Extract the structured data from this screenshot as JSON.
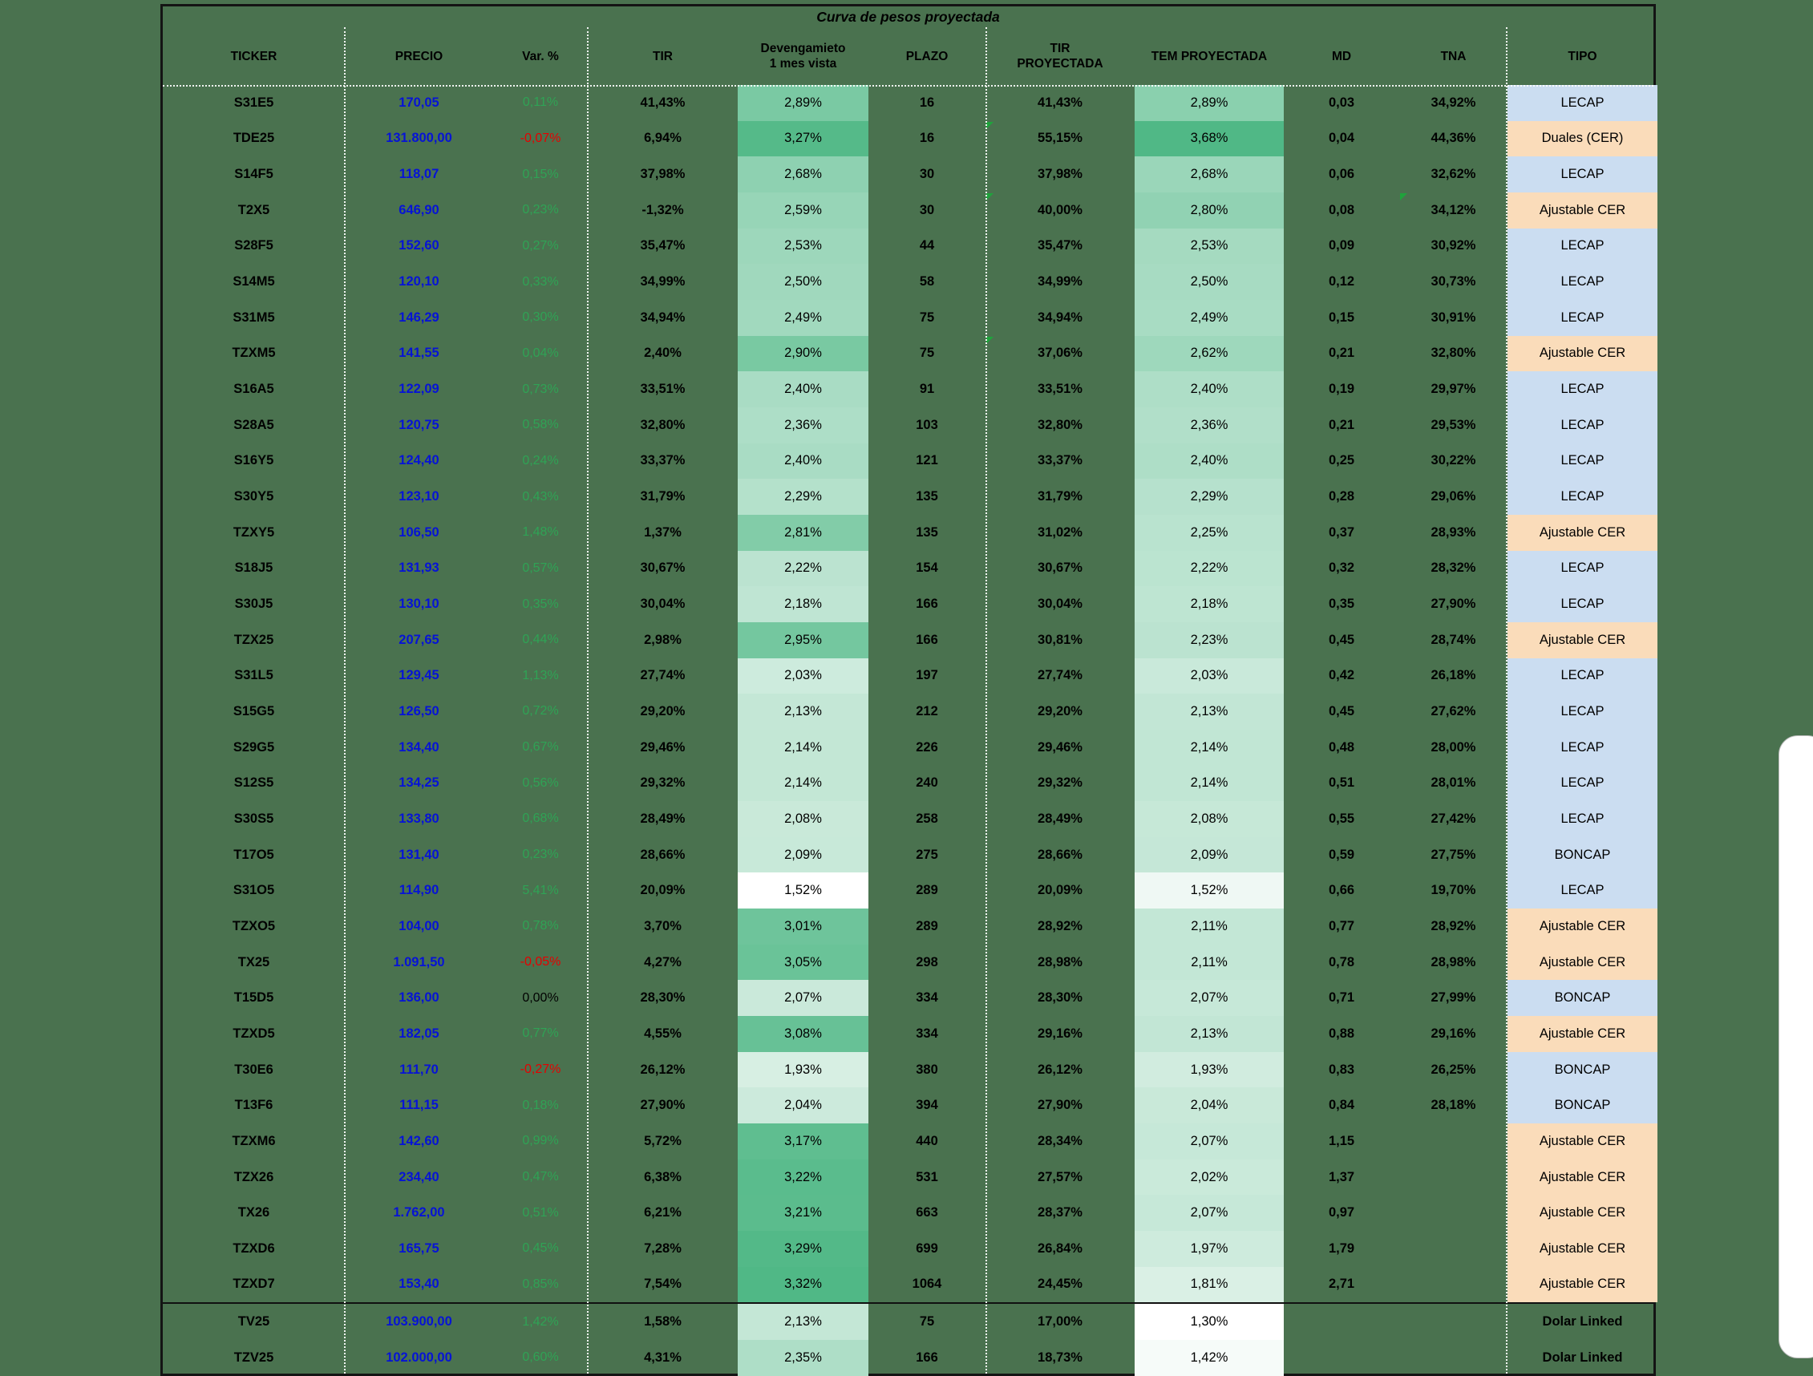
{
  "title": "Curva de pesos proyectada",
  "columns": [
    {
      "key": "ticker",
      "label": "TICKER"
    },
    {
      "key": "precio",
      "label": "PRECIO"
    },
    {
      "key": "var",
      "label": "Var. %"
    },
    {
      "key": "tir",
      "label": "TIR"
    },
    {
      "key": "dev",
      "label": "Devengamieto 1 mes vista",
      "label_lines": [
        "Devengamieto",
        "1 mes vista"
      ]
    },
    {
      "key": "plazo",
      "label": "PLAZO"
    },
    {
      "key": "tirp",
      "label": "TIR PROYECTADA",
      "label_lines": [
        "TIR",
        "PROYECTADA"
      ]
    },
    {
      "key": "tem",
      "label": "TEM PROYECTADA"
    },
    {
      "key": "md",
      "label": "MD"
    },
    {
      "key": "tna",
      "label": "TNA"
    },
    {
      "key": "tipo",
      "label": "TIPO"
    }
  ],
  "colors": {
    "background": "#4a724f",
    "price_text": "#0613d6",
    "positive_var": "#2fa355",
    "negative_var": "#e60000",
    "zero_var": "#000000",
    "heat_max": "#50b886",
    "error_indicator": "#1fa33c",
    "tipo_fills": {
      "LECAP": "#cbddf1",
      "BONCAP": "#cbddf1",
      "Duales (CER)": "#fadcba",
      "Ajustable CER": "#fadcba",
      "Dolar Linked": ""
    }
  },
  "rows": [
    {
      "ticker": "S31E5",
      "precio": "170,05",
      "var": "0,11%",
      "tir": "41,43%",
      "dev": "2,89%",
      "plazo": "16",
      "tirp": "41,43%",
      "tem": "2,89%",
      "md": "0,03",
      "tna": "34,92%",
      "tipo": "LECAP"
    },
    {
      "ticker": "TDE25",
      "precio": "131.800,00",
      "var": "-0,07%",
      "tir": "6,94%",
      "dev": "3,27%",
      "plazo": "16",
      "tirp": "55,15%",
      "tem": "3,68%",
      "md": "0,04",
      "tna": "44,36%",
      "tipo": "Duales (CER)",
      "err": [
        "tirp"
      ]
    },
    {
      "ticker": "S14F5",
      "precio": "118,07",
      "var": "0,15%",
      "tir": "37,98%",
      "dev": "2,68%",
      "plazo": "30",
      "tirp": "37,98%",
      "tem": "2,68%",
      "md": "0,06",
      "tna": "32,62%",
      "tipo": "LECAP"
    },
    {
      "ticker": "T2X5",
      "precio": "646,90",
      "var": "0,23%",
      "tir": "-1,32%",
      "dev": "2,59%",
      "plazo": "30",
      "tirp": "40,00%",
      "tem": "2,80%",
      "md": "0,08",
      "tna": "34,12%",
      "tipo": "Ajustable CER",
      "err": [
        "tirp",
        "tna"
      ]
    },
    {
      "ticker": "S28F5",
      "precio": "152,60",
      "var": "0,27%",
      "tir": "35,47%",
      "dev": "2,53%",
      "plazo": "44",
      "tirp": "35,47%",
      "tem": "2,53%",
      "md": "0,09",
      "tna": "30,92%",
      "tipo": "LECAP"
    },
    {
      "ticker": "S14M5",
      "precio": "120,10",
      "var": "0,33%",
      "tir": "34,99%",
      "dev": "2,50%",
      "plazo": "58",
      "tirp": "34,99%",
      "tem": "2,50%",
      "md": "0,12",
      "tna": "30,73%",
      "tipo": "LECAP"
    },
    {
      "ticker": "S31M5",
      "precio": "146,29",
      "var": "0,30%",
      "tir": "34,94%",
      "dev": "2,49%",
      "plazo": "75",
      "tirp": "34,94%",
      "tem": "2,49%",
      "md": "0,15",
      "tna": "30,91%",
      "tipo": "LECAP"
    },
    {
      "ticker": "TZXM5",
      "precio": "141,55",
      "var": "0,04%",
      "tir": "2,40%",
      "dev": "2,90%",
      "plazo": "75",
      "tirp": "37,06%",
      "tem": "2,62%",
      "md": "0,21",
      "tna": "32,80%",
      "tipo": "Ajustable CER",
      "err": [
        "tirp"
      ]
    },
    {
      "ticker": "S16A5",
      "precio": "122,09",
      "var": "0,73%",
      "tir": "33,51%",
      "dev": "2,40%",
      "plazo": "91",
      "tirp": "33,51%",
      "tem": "2,40%",
      "md": "0,19",
      "tna": "29,97%",
      "tipo": "LECAP"
    },
    {
      "ticker": "S28A5",
      "precio": "120,75",
      "var": "0,58%",
      "tir": "32,80%",
      "dev": "2,36%",
      "plazo": "103",
      "tirp": "32,80%",
      "tem": "2,36%",
      "md": "0,21",
      "tna": "29,53%",
      "tipo": "LECAP"
    },
    {
      "ticker": "S16Y5",
      "precio": "124,40",
      "var": "0,24%",
      "tir": "33,37%",
      "dev": "2,40%",
      "plazo": "121",
      "tirp": "33,37%",
      "tem": "2,40%",
      "md": "0,25",
      "tna": "30,22%",
      "tipo": "LECAP"
    },
    {
      "ticker": "S30Y5",
      "precio": "123,10",
      "var": "0,43%",
      "tir": "31,79%",
      "dev": "2,29%",
      "plazo": "135",
      "tirp": "31,79%",
      "tem": "2,29%",
      "md": "0,28",
      "tna": "29,06%",
      "tipo": "LECAP"
    },
    {
      "ticker": "TZXY5",
      "precio": "106,50",
      "var": "1,48%",
      "tir": "1,37%",
      "dev": "2,81%",
      "plazo": "135",
      "tirp": "31,02%",
      "tem": "2,25%",
      "md": "0,37",
      "tna": "28,93%",
      "tipo": "Ajustable CER"
    },
    {
      "ticker": "S18J5",
      "precio": "131,93",
      "var": "0,57%",
      "tir": "30,67%",
      "dev": "2,22%",
      "plazo": "154",
      "tirp": "30,67%",
      "tem": "2,22%",
      "md": "0,32",
      "tna": "28,32%",
      "tipo": "LECAP"
    },
    {
      "ticker": "S30J5",
      "precio": "130,10",
      "var": "0,35%",
      "tir": "30,04%",
      "dev": "2,18%",
      "plazo": "166",
      "tirp": "30,04%",
      "tem": "2,18%",
      "md": "0,35",
      "tna": "27,90%",
      "tipo": "LECAP"
    },
    {
      "ticker": "TZX25",
      "precio": "207,65",
      "var": "0,44%",
      "tir": "2,98%",
      "dev": "2,95%",
      "plazo": "166",
      "tirp": "30,81%",
      "tem": "2,23%",
      "md": "0,45",
      "tna": "28,74%",
      "tipo": "Ajustable CER"
    },
    {
      "ticker": "S31L5",
      "precio": "129,45",
      "var": "1,13%",
      "tir": "27,74%",
      "dev": "2,03%",
      "plazo": "197",
      "tirp": "27,74%",
      "tem": "2,03%",
      "md": "0,42",
      "tna": "26,18%",
      "tipo": "LECAP"
    },
    {
      "ticker": "S15G5",
      "precio": "126,50",
      "var": "0,72%",
      "tir": "29,20%",
      "dev": "2,13%",
      "plazo": "212",
      "tirp": "29,20%",
      "tem": "2,13%",
      "md": "0,45",
      "tna": "27,62%",
      "tipo": "LECAP"
    },
    {
      "ticker": "S29G5",
      "precio": "134,40",
      "var": "0,67%",
      "tir": "29,46%",
      "dev": "2,14%",
      "plazo": "226",
      "tirp": "29,46%",
      "tem": "2,14%",
      "md": "0,48",
      "tna": "28,00%",
      "tipo": "LECAP"
    },
    {
      "ticker": "S12S5",
      "precio": "134,25",
      "var": "0,56%",
      "tir": "29,32%",
      "dev": "2,14%",
      "plazo": "240",
      "tirp": "29,32%",
      "tem": "2,14%",
      "md": "0,51",
      "tna": "28,01%",
      "tipo": "LECAP"
    },
    {
      "ticker": "S30S5",
      "precio": "133,80",
      "var": "0,68%",
      "tir": "28,49%",
      "dev": "2,08%",
      "plazo": "258",
      "tirp": "28,49%",
      "tem": "2,08%",
      "md": "0,55",
      "tna": "27,42%",
      "tipo": "LECAP"
    },
    {
      "ticker": "T17O5",
      "precio": "131,40",
      "var": "0,23%",
      "tir": "28,66%",
      "dev": "2,09%",
      "plazo": "275",
      "tirp": "28,66%",
      "tem": "2,09%",
      "md": "0,59",
      "tna": "27,75%",
      "tipo": "BONCAP"
    },
    {
      "ticker": "S31O5",
      "precio": "114,90",
      "var": "5,41%",
      "tir": "20,09%",
      "dev": "1,52%",
      "plazo": "289",
      "tirp": "20,09%",
      "tem": "1,52%",
      "md": "0,66",
      "tna": "19,70%",
      "tipo": "LECAP"
    },
    {
      "ticker": "TZXO5",
      "precio": "104,00",
      "var": "0,78%",
      "tir": "3,70%",
      "dev": "3,01%",
      "plazo": "289",
      "tirp": "28,92%",
      "tem": "2,11%",
      "md": "0,77",
      "tna": "28,92%",
      "tipo": "Ajustable CER"
    },
    {
      "ticker": "TX25",
      "precio": "1.091,50",
      "var": "-0,05%",
      "tir": "4,27%",
      "dev": "3,05%",
      "plazo": "298",
      "tirp": "28,98%",
      "tem": "2,11%",
      "md": "0,78",
      "tna": "28,98%",
      "tipo": "Ajustable CER"
    },
    {
      "ticker": "T15D5",
      "precio": "136,00",
      "var": "0,00%",
      "tir": "28,30%",
      "dev": "2,07%",
      "plazo": "334",
      "tirp": "28,30%",
      "tem": "2,07%",
      "md": "0,71",
      "tna": "27,99%",
      "tipo": "BONCAP"
    },
    {
      "ticker": "TZXD5",
      "precio": "182,05",
      "var": "0,77%",
      "tir": "4,55%",
      "dev": "3,08%",
      "plazo": "334",
      "tirp": "29,16%",
      "tem": "2,13%",
      "md": "0,88",
      "tna": "29,16%",
      "tipo": "Ajustable CER"
    },
    {
      "ticker": "T30E6",
      "precio": "111,70",
      "var": "-0,27%",
      "tir": "26,12%",
      "dev": "1,93%",
      "plazo": "380",
      "tirp": "26,12%",
      "tem": "1,93%",
      "md": "0,83",
      "tna": "26,25%",
      "tipo": "BONCAP"
    },
    {
      "ticker": "T13F6",
      "precio": "111,15",
      "var": "0,18%",
      "tir": "27,90%",
      "dev": "2,04%",
      "plazo": "394",
      "tirp": "27,90%",
      "tem": "2,04%",
      "md": "0,84",
      "tna": "28,18%",
      "tipo": "BONCAP"
    },
    {
      "ticker": "TZXM6",
      "precio": "142,60",
      "var": "0,99%",
      "tir": "5,72%",
      "dev": "3,17%",
      "plazo": "440",
      "tirp": "28,34%",
      "tem": "2,07%",
      "md": "1,15",
      "tna": "",
      "tipo": "Ajustable CER"
    },
    {
      "ticker": "TZX26",
      "precio": "234,40",
      "var": "0,47%",
      "tir": "6,38%",
      "dev": "3,22%",
      "plazo": "531",
      "tirp": "27,57%",
      "tem": "2,02%",
      "md": "1,37",
      "tna": "",
      "tipo": "Ajustable CER"
    },
    {
      "ticker": "TX26",
      "precio": "1.762,00",
      "var": "0,51%",
      "tir": "6,21%",
      "dev": "3,21%",
      "plazo": "663",
      "tirp": "28,37%",
      "tem": "2,07%",
      "md": "0,97",
      "tna": "",
      "tipo": "Ajustable CER"
    },
    {
      "ticker": "TZXD6",
      "precio": "165,75",
      "var": "0,45%",
      "tir": "7,28%",
      "dev": "3,29%",
      "plazo": "699",
      "tirp": "26,84%",
      "tem": "1,97%",
      "md": "1,79",
      "tna": "",
      "tipo": "Ajustable CER"
    },
    {
      "ticker": "TZXD7",
      "precio": "153,40",
      "var": "0,85%",
      "tir": "7,54%",
      "dev": "3,32%",
      "plazo": "1064",
      "tirp": "24,45%",
      "tem": "1,81%",
      "md": "2,71",
      "tna": "",
      "tipo": "Ajustable CER"
    },
    {
      "ticker": "TV25",
      "precio": "103.900,00",
      "var": "1,42%",
      "tir": "1,58%",
      "dev": "2,13%",
      "plazo": "75",
      "tirp": "17,00%",
      "tem": "1,30%",
      "md": "",
      "tna": "",
      "tipo": "Dolar Linked",
      "section": "dolar_linked"
    },
    {
      "ticker": "TZV25",
      "precio": "102.000,00",
      "var": "0,60%",
      "tir": "4,31%",
      "dev": "2,35%",
      "plazo": "166",
      "tirp": "18,73%",
      "tem": "1,42%",
      "md": "",
      "tna": "",
      "tipo": "Dolar Linked",
      "section": "dolar_linked"
    }
  ]
}
